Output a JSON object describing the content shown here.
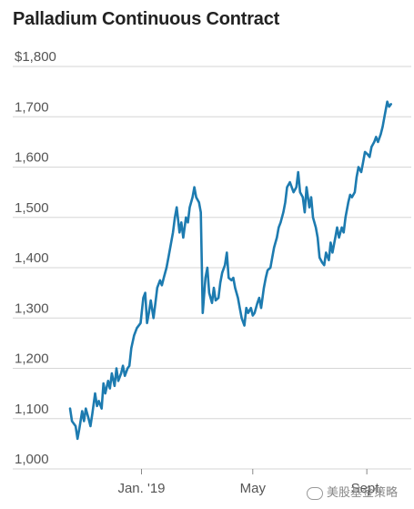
{
  "chart_data": {
    "type": "line",
    "title": "Palladium Continuous Contract",
    "ylim": [
      1000,
      1800
    ],
    "y_ticks": [
      "$1,800",
      "1,700",
      "1,600",
      "1,500",
      "1,400",
      "1,300",
      "1,200",
      "1,100",
      "1,000"
    ],
    "y_tick_values": [
      1800,
      1700,
      1600,
      1500,
      1400,
      1300,
      1200,
      1100,
      1000
    ],
    "x_ticks": [
      {
        "label": "Jan. '19",
        "date": "2019-01-01"
      },
      {
        "label": "May",
        "date": "2019-05-01"
      },
      {
        "label": "Sept.",
        "date": "2019-09-01"
      }
    ],
    "xlim": [
      "2018-10-15",
      "2019-10-15"
    ],
    "grid": true,
    "series": [
      {
        "color": "#1d7bb0",
        "points": [
          [
            "2018-10-16",
            1120
          ],
          [
            "2018-10-18",
            1095
          ],
          [
            "2018-10-22",
            1085
          ],
          [
            "2018-10-24",
            1060
          ],
          [
            "2018-10-26",
            1080
          ],
          [
            "2018-10-29",
            1115
          ],
          [
            "2018-10-31",
            1095
          ],
          [
            "2018-11-02",
            1120
          ],
          [
            "2018-11-05",
            1100
          ],
          [
            "2018-11-07",
            1085
          ],
          [
            "2018-11-09",
            1110
          ],
          [
            "2018-11-12",
            1150
          ],
          [
            "2018-11-14",
            1125
          ],
          [
            "2018-11-16",
            1135
          ],
          [
            "2018-11-19",
            1120
          ],
          [
            "2018-11-21",
            1170
          ],
          [
            "2018-11-23",
            1150
          ],
          [
            "2018-11-26",
            1175
          ],
          [
            "2018-11-28",
            1160
          ],
          [
            "2018-11-30",
            1190
          ],
          [
            "2018-12-03",
            1165
          ],
          [
            "2018-12-05",
            1200
          ],
          [
            "2018-12-07",
            1175
          ],
          [
            "2018-12-10",
            1190
          ],
          [
            "2018-12-12",
            1205
          ],
          [
            "2018-12-14",
            1185
          ],
          [
            "2018-12-17",
            1200
          ],
          [
            "2018-12-19",
            1205
          ],
          [
            "2018-12-21",
            1240
          ],
          [
            "2018-12-24",
            1265
          ],
          [
            "2018-12-27",
            1280
          ],
          [
            "2018-12-31",
            1290
          ],
          [
            "2019-01-03",
            1340
          ],
          [
            "2019-01-05",
            1350
          ],
          [
            "2019-01-07",
            1290
          ],
          [
            "2019-01-09",
            1310
          ],
          [
            "2019-01-11",
            1335
          ],
          [
            "2019-01-14",
            1300
          ],
          [
            "2019-01-16",
            1330
          ],
          [
            "2019-01-18",
            1360
          ],
          [
            "2019-01-21",
            1375
          ],
          [
            "2019-01-23",
            1365
          ],
          [
            "2019-01-25",
            1380
          ],
          [
            "2019-01-28",
            1400
          ],
          [
            "2019-01-30",
            1420
          ],
          [
            "2019-02-01",
            1440
          ],
          [
            "2019-02-04",
            1470
          ],
          [
            "2019-02-06",
            1500
          ],
          [
            "2019-02-08",
            1520
          ],
          [
            "2019-02-11",
            1470
          ],
          [
            "2019-02-13",
            1490
          ],
          [
            "2019-02-15",
            1460
          ],
          [
            "2019-02-18",
            1500
          ],
          [
            "2019-02-20",
            1490
          ],
          [
            "2019-02-22",
            1520
          ],
          [
            "2019-02-25",
            1540
          ],
          [
            "2019-02-27",
            1560
          ],
          [
            "2019-03-01",
            1540
          ],
          [
            "2019-03-04",
            1530
          ],
          [
            "2019-03-06",
            1510
          ],
          [
            "2019-03-08",
            1310
          ],
          [
            "2019-03-11",
            1380
          ],
          [
            "2019-03-13",
            1400
          ],
          [
            "2019-03-15",
            1350
          ],
          [
            "2019-03-18",
            1330
          ],
          [
            "2019-03-20",
            1360
          ],
          [
            "2019-03-22",
            1335
          ],
          [
            "2019-03-25",
            1340
          ],
          [
            "2019-03-27",
            1370
          ],
          [
            "2019-03-29",
            1390
          ],
          [
            "2019-04-01",
            1405
          ],
          [
            "2019-04-03",
            1430
          ],
          [
            "2019-04-05",
            1380
          ],
          [
            "2019-04-08",
            1375
          ],
          [
            "2019-04-10",
            1380
          ],
          [
            "2019-04-12",
            1360
          ],
          [
            "2019-04-15",
            1340
          ],
          [
            "2019-04-17",
            1320
          ],
          [
            "2019-04-19",
            1300
          ],
          [
            "2019-04-22",
            1285
          ],
          [
            "2019-04-24",
            1320
          ],
          [
            "2019-04-26",
            1310
          ],
          [
            "2019-04-29",
            1320
          ],
          [
            "2019-05-01",
            1305
          ],
          [
            "2019-05-03",
            1310
          ],
          [
            "2019-05-06",
            1330
          ],
          [
            "2019-05-08",
            1340
          ],
          [
            "2019-05-10",
            1320
          ],
          [
            "2019-05-13",
            1360
          ],
          [
            "2019-05-15",
            1380
          ],
          [
            "2019-05-17",
            1395
          ],
          [
            "2019-05-20",
            1400
          ],
          [
            "2019-05-22",
            1420
          ],
          [
            "2019-05-24",
            1440
          ],
          [
            "2019-05-27",
            1460
          ],
          [
            "2019-05-29",
            1480
          ],
          [
            "2019-05-31",
            1490
          ],
          [
            "2019-06-03",
            1510
          ],
          [
            "2019-06-05",
            1530
          ],
          [
            "2019-06-07",
            1560
          ],
          [
            "2019-06-10",
            1570
          ],
          [
            "2019-06-12",
            1560
          ],
          [
            "2019-06-14",
            1550
          ],
          [
            "2019-06-17",
            1560
          ],
          [
            "2019-06-19",
            1590
          ],
          [
            "2019-06-21",
            1550
          ],
          [
            "2019-06-24",
            1540
          ],
          [
            "2019-06-26",
            1510
          ],
          [
            "2019-06-28",
            1560
          ],
          [
            "2019-07-01",
            1520
          ],
          [
            "2019-07-03",
            1540
          ],
          [
            "2019-07-05",
            1500
          ],
          [
            "2019-07-08",
            1480
          ],
          [
            "2019-07-10",
            1460
          ],
          [
            "2019-07-12",
            1420
          ],
          [
            "2019-07-15",
            1410
          ],
          [
            "2019-07-17",
            1405
          ],
          [
            "2019-07-19",
            1430
          ],
          [
            "2019-07-22",
            1415
          ],
          [
            "2019-07-24",
            1450
          ],
          [
            "2019-07-26",
            1430
          ],
          [
            "2019-07-29",
            1460
          ],
          [
            "2019-07-31",
            1480
          ],
          [
            "2019-08-02",
            1460
          ],
          [
            "2019-08-05",
            1480
          ],
          [
            "2019-08-07",
            1470
          ],
          [
            "2019-08-09",
            1500
          ],
          [
            "2019-08-12",
            1530
          ],
          [
            "2019-08-14",
            1545
          ],
          [
            "2019-08-16",
            1540
          ],
          [
            "2019-08-19",
            1550
          ],
          [
            "2019-08-21",
            1580
          ],
          [
            "2019-08-23",
            1600
          ],
          [
            "2019-08-26",
            1590
          ],
          [
            "2019-08-28",
            1610
          ],
          [
            "2019-08-30",
            1630
          ],
          [
            "2019-09-02",
            1625
          ],
          [
            "2019-09-04",
            1620
          ],
          [
            "2019-09-06",
            1640
          ],
          [
            "2019-09-09",
            1650
          ],
          [
            "2019-09-11",
            1660
          ],
          [
            "2019-09-13",
            1650
          ],
          [
            "2019-09-16",
            1665
          ],
          [
            "2019-09-18",
            1680
          ],
          [
            "2019-09-20",
            1700
          ],
          [
            "2019-09-23",
            1730
          ],
          [
            "2019-09-25",
            1720
          ],
          [
            "2019-09-27",
            1725
          ]
        ]
      }
    ]
  },
  "watermark": {
    "text": "美股基金策略",
    "icon": "wechat-icon"
  }
}
